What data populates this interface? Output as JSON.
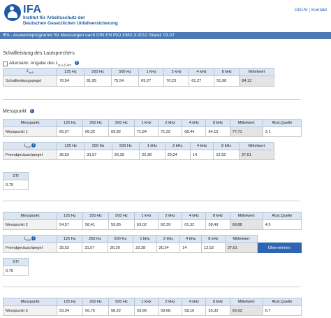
{
  "header": {
    "logo_title": "IFA",
    "logo_sub_1": "Institut für Arbeitsschutz der",
    "logo_sub_2": "Deutschen Gesetzlichen Unfallversicherung",
    "link_dguv": "DGUV",
    "link_sep": "|",
    "link_kontakt": "Kontakt"
  },
  "titlebar": "IFA - Auswerteprogramm für Messungen nach DIN EN ISO 3382-3:2012 Stand: 03.07",
  "speaker": {
    "section_title": "Schallleistung des Lautsprechers",
    "alt_label": "Alternativ: Angabe des L",
    "alt_sub": "p,A,S,4m",
    "corner_label": "L",
    "corner_sub": "w,A",
    "columns": [
      "125 Hz",
      "250 Hz",
      "500 Hz",
      "1 kHz",
      "2 kHz",
      "4 kHz",
      "8 kHz",
      "Mittelwert"
    ],
    "row_label": "Schallleistungspegel",
    "values": [
      "76,54",
      "81,95",
      "75,54",
      "69,27",
      "70,23",
      "61,27",
      "51,98",
      "84,12"
    ]
  },
  "messpunkt_title": "Messpunkt",
  "point_columns": [
    "Messpunkt",
    "125 Hz",
    "250 Hz",
    "500 Hz",
    "1 kHz",
    "2 kHz",
    "4 kHz",
    "8 kHz",
    "Mittelwert",
    "Abst.Quelle"
  ],
  "noise_corner": "L",
  "noise_corner_sub": "p,B",
  "noise_columns": [
    "125 Hz",
    "250 Hz",
    "500 Hz",
    "1 kHz",
    "2 kHz",
    "4 kHz",
    "8 kHz",
    "Mittelwert"
  ],
  "noise_label": "Fremdgeräuschpegel",
  "sti_header": "STI",
  "points": [
    {
      "name": "Messpunkt 1",
      "values": [
        "65,07",
        "68,32",
        "69,82",
        "71,84",
        "71,32",
        "68,44",
        "64,15",
        "77,71",
        "2,1"
      ],
      "noise": [
        "35,53",
        "31,57",
        "26,39",
        "22,28",
        "20,34",
        "14",
        "12,52",
        "37,61"
      ],
      "sti": "0,79"
    },
    {
      "name": "Messpunkt 2",
      "values": [
        "54,57",
        "58,41",
        "59,85",
        "63,02",
        "62,39",
        "61,32",
        "58,49",
        "68,88",
        "4,5"
      ],
      "noise": [
        "35,53",
        "31,57",
        "26,39",
        "22,28",
        "20,34",
        "14",
        "12,52",
        "37,61"
      ],
      "noise_button": "Übernehmen",
      "sti": "0,76"
    },
    {
      "name": "Messpunkt 3",
      "values": [
        "53,34",
        "56,75",
        "58,22",
        "59,86",
        "59,68",
        "58,16",
        "55,32",
        "66,63",
        "6,7"
      ]
    }
  ]
}
